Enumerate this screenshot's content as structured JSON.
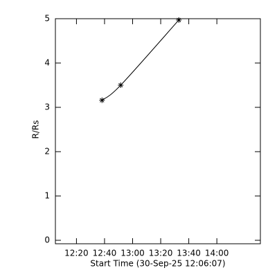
{
  "chart_data": {
    "type": "line",
    "xlabel": "Start Time (30-Sep-25 12:06:07)",
    "ylabel": "R/Rs",
    "x": [
      758.2,
      771.5,
      812.9
    ],
    "series": [
      {
        "color": "#000000",
        "values": [
          3.16,
          3.5,
          4.97
        ]
      }
    ],
    "xlim": [
      725,
      871
    ],
    "xticks": [
      {
        "value": 740,
        "label": "12:20"
      },
      {
        "value": 760,
        "label": "12:40"
      },
      {
        "value": 780,
        "label": "13:00"
      },
      {
        "value": 800,
        "label": "13:20"
      },
      {
        "value": 820,
        "label": "13:40"
      },
      {
        "value": 840,
        "label": "14:00"
      }
    ],
    "ylim": [
      0,
      5
    ],
    "yticks": [
      0,
      1,
      2,
      3,
      4,
      5
    ]
  }
}
